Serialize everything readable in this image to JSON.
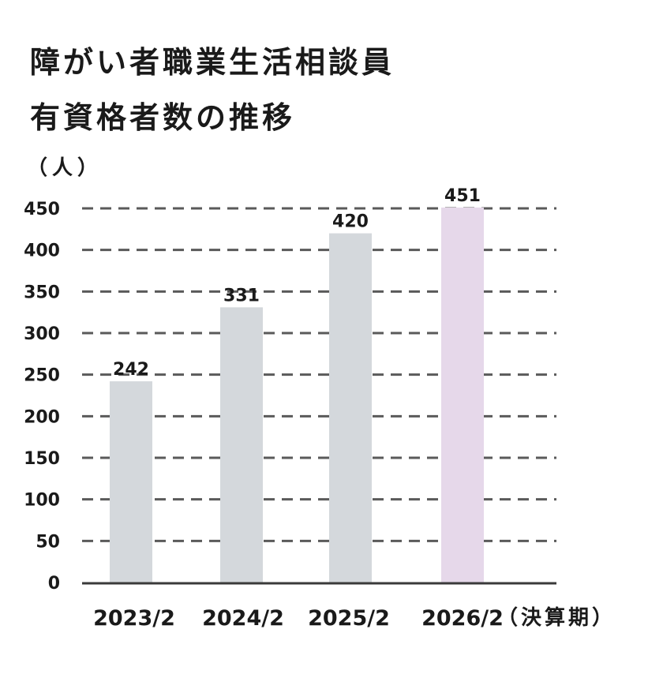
{
  "chart_data": {
    "type": "bar",
    "title": [
      "障がい者職業生活相談員",
      "有資格者数の推移"
    ],
    "ylabel": "（人）",
    "xlabel_suffix": "（決算期）",
    "categories": [
      "2023/2",
      "2024/2",
      "2025/2",
      "2026/2"
    ],
    "values": [
      242,
      331,
      420,
      451
    ],
    "data_labels": [
      "242",
      "331",
      "420",
      "451"
    ],
    "ylim": [
      0,
      450
    ],
    "yticks": [
      0,
      50,
      100,
      150,
      200,
      250,
      300,
      350,
      400,
      450
    ],
    "ytick_labels": [
      "0",
      "50",
      "100",
      "150",
      "200",
      "250",
      "300",
      "350",
      "400",
      "450"
    ],
    "grid": "dashed horizontal",
    "bar_colors": [
      "#d4d8dc",
      "#d4d8dc",
      "#d4d8dc",
      "#e6d8ea"
    ],
    "grid_color": "#5a5a5a",
    "axis_color": "#3a3a3a"
  }
}
